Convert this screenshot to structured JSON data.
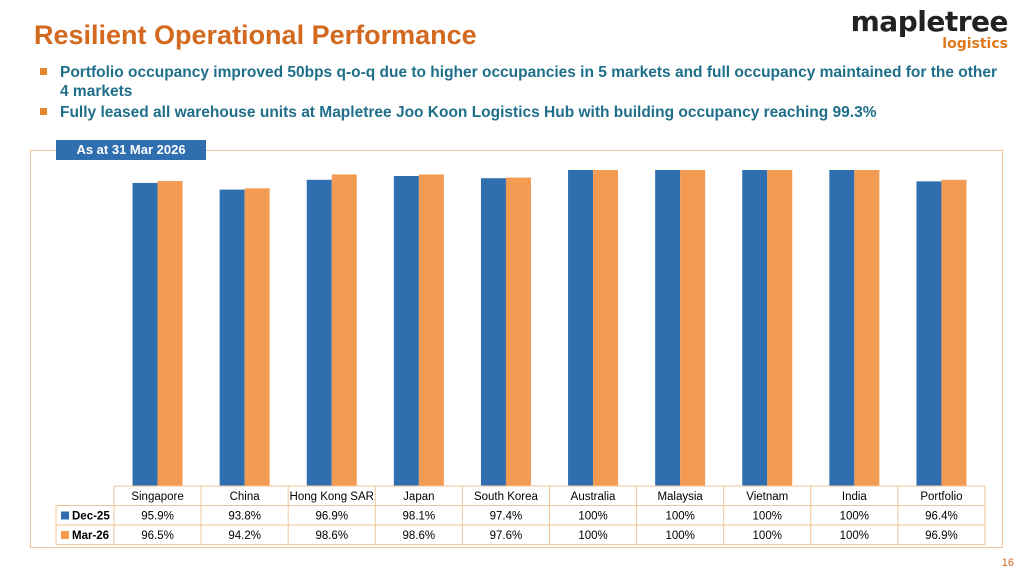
{
  "slide": {
    "title": "Resilient Operational Performance",
    "bullets": [
      "Portfolio occupancy improved 50bps q-o-q due to higher occupancies in 5 markets and full occupancy maintained for the other 4 markets",
      "Fully leased all warehouse units at Mapletree Joo Koon Logistics Hub with building occupancy reaching 99.3%"
    ],
    "date_label": "As at 31 Mar 2026",
    "page_number": "16"
  },
  "logo": {
    "word": "mapletree",
    "sub": "logistics"
  },
  "colors": {
    "dec25": "#2f6fb0",
    "mar26": "#f39b52",
    "title": "#d2691e",
    "accent": "#e0862c"
  },
  "chart_data": {
    "type": "bar",
    "categories": [
      "Singapore",
      "China",
      "Hong Kong SAR",
      "Japan",
      "South Korea",
      "Australia",
      "Malaysia",
      "Vietnam",
      "India",
      "Portfolio"
    ],
    "series": [
      {
        "name": "Dec-25",
        "values": [
          95.9,
          93.8,
          96.9,
          98.1,
          97.4,
          100,
          100,
          100,
          100,
          96.4
        ],
        "labels": [
          "95.9%",
          "93.8%",
          "96.9%",
          "98.1%",
          "97.4%",
          "100%",
          "100%",
          "100%",
          "100%",
          "96.4%"
        ]
      },
      {
        "name": "Mar-26",
        "values": [
          96.5,
          94.2,
          98.6,
          98.6,
          97.6,
          100,
          100,
          100,
          100,
          96.9
        ],
        "labels": [
          "96.5%",
          "94.2%",
          "98.6%",
          "98.6%",
          "97.6%",
          "100%",
          "100%",
          "100%",
          "100%",
          "96.9%"
        ]
      }
    ],
    "ylim": [
      0,
      100
    ],
    "legend": "data-table",
    "grid": false
  }
}
